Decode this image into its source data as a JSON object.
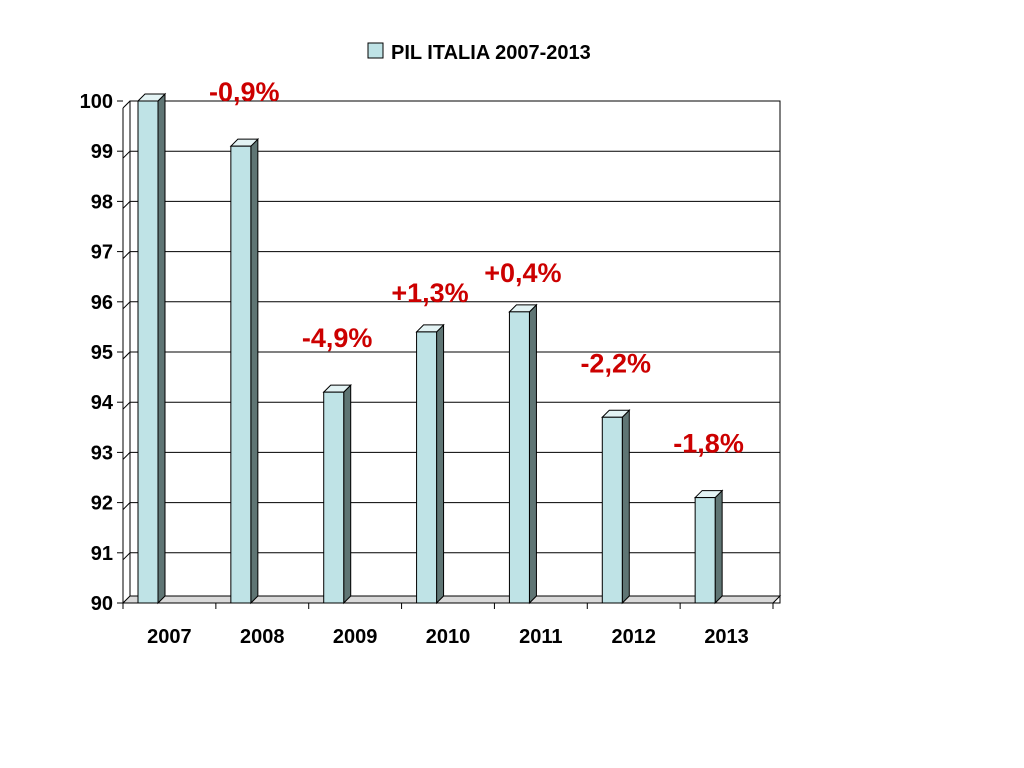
{
  "chart_data": {
    "type": "bar",
    "categories": [
      "2007",
      "2008",
      "2009",
      "2010",
      "2011",
      "2012",
      "2013"
    ],
    "series": [
      {
        "name": "PIL ITALIA 2007-2013",
        "values": [
          100,
          99.1,
          94.2,
          95.4,
          95.8,
          93.7,
          92.1
        ]
      }
    ],
    "ylim": [
      90,
      100
    ],
    "yticks": [
      "90",
      "91",
      "92",
      "93",
      "94",
      "95",
      "96",
      "97",
      "98",
      "99",
      "100"
    ],
    "grid": true,
    "legend": "top-center",
    "annotations": [
      "",
      "-0,9%",
      "-4,9%",
      "+1,3%",
      "+0,4%",
      "-2,2%",
      "-1,8%"
    ],
    "colors": {
      "bar": "#bfe3e6",
      "bar_side": "#5f7574",
      "annotation": "#cc0000",
      "grid": "#000000"
    }
  }
}
